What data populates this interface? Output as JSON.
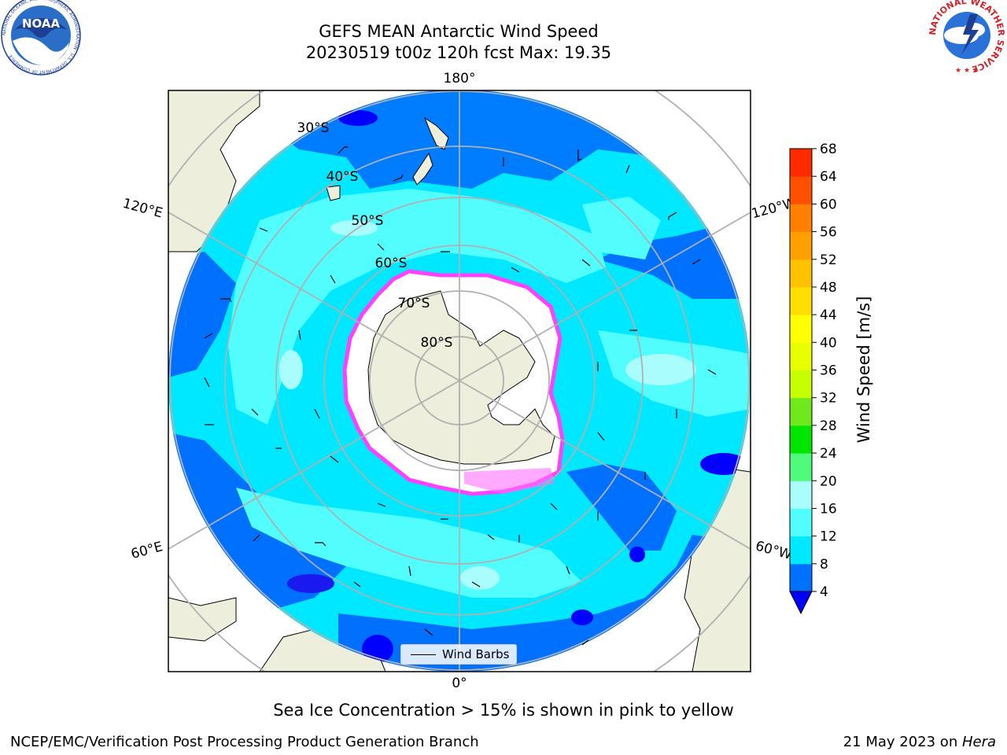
{
  "header": {
    "title_line1": "GEFS MEAN Antarctic Wind Speed",
    "title_line2": "20230519 t00z 120h fcst   Max: 19.35"
  },
  "logos": {
    "left": {
      "name": "NOAA",
      "ring_text": "NATIONAL OCEANIC AND ATMOSPHERIC ADMINISTRATION · U.S. DEPARTMENT OF COMMERCE"
    },
    "right": {
      "ring_text": "NATIONAL WEATHER SERVICE"
    }
  },
  "map": {
    "projection": "south-polar stereographic",
    "longitude_labels": {
      "top": "180°",
      "bottom": "0°",
      "upper_left": "120°E",
      "upper_right": "120°W",
      "lower_left": "60°E",
      "lower_right": "60°W"
    },
    "latitude_labels": [
      "30°S",
      "40°S",
      "50°S",
      "60°S",
      "70°S",
      "80°S"
    ],
    "legend_label": "Wind Barbs",
    "colors": {
      "land": "#eeeedc",
      "ice_free_polar": "#ffffff",
      "frame": "#000000",
      "graticule": "#b0b0b0",
      "sea_ice_edge": "#ff40ff"
    }
  },
  "colorbar": {
    "title": "Wind Speed [m/s]",
    "ticks": [
      4,
      8,
      12,
      16,
      20,
      24,
      28,
      32,
      36,
      40,
      44,
      48,
      52,
      56,
      60,
      64,
      68
    ],
    "colors": [
      "#0070ff",
      "#00e8ff",
      "#52fdfd",
      "#aafdfd",
      "#50fa7a",
      "#00e600",
      "#6fe81c",
      "#c6ff00",
      "#e8ff00",
      "#ffff00",
      "#ffde00",
      "#ffc200",
      "#ffa000",
      "#ff8000",
      "#ff5000",
      "#ff2a00"
    ],
    "extend_min_color": "#0000ff"
  },
  "footer": {
    "subtitle": "Sea Ice Concentration > 15% is shown in pink to yellow",
    "credit_left": "NCEP/EMC/Verification Post Processing Product Generation Branch",
    "credit_right_prefix": "21 May 2023 on ",
    "credit_right_host": "Hera"
  }
}
